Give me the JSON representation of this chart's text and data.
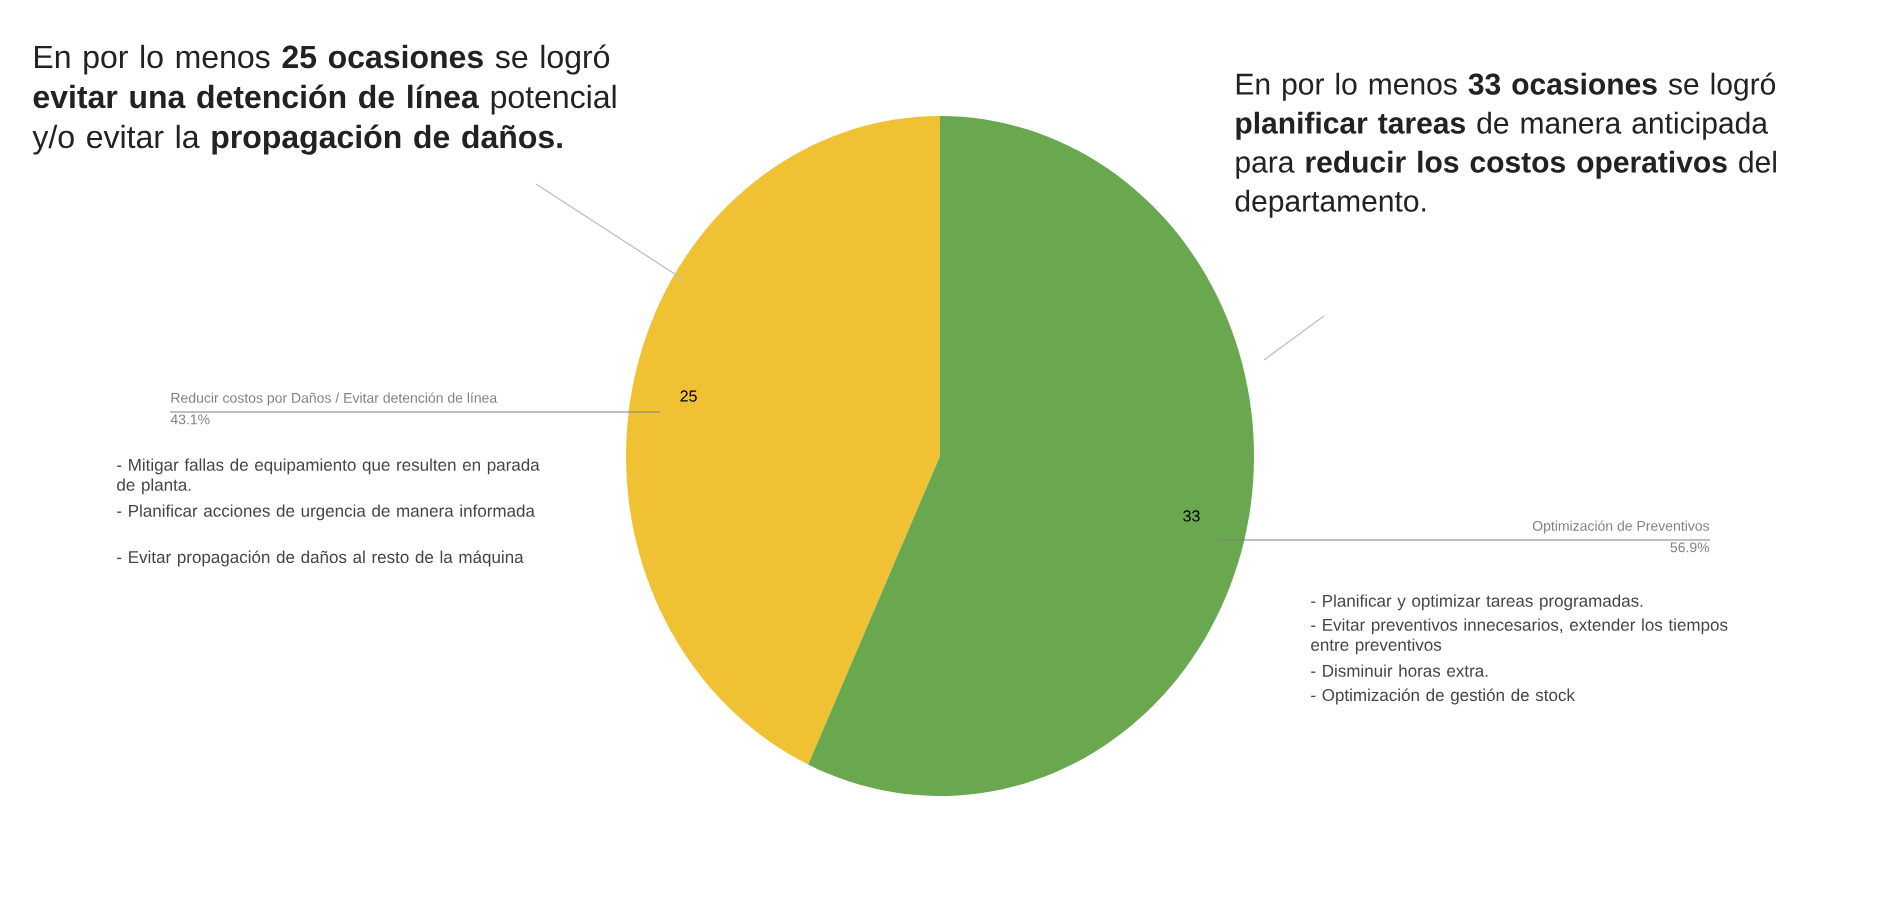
{
  "chart_data": {
    "type": "pie",
    "categories": [
      "Reducir costos por Daños / Evitar detención de línea",
      "Optimización de Preventivos"
    ],
    "values": [
      25,
      33
    ],
    "colors": [
      "#f0c233",
      "#6aa84f"
    ],
    "data_labels": true,
    "annotations": [
      "En por lo menos **25 ocasiones** se logró **evitar una detención de línea** potencial y/o evitar la **propagación de daños.**",
      "En por lo menos **33 ocasiones** se logró **planificar tareas** de manera anticipada para **reducir los costos operativos** del departamento.",
      "43.1%",
      "56.9%",
      "- Mitigar fallas de equipamiento que resulten en parada de planta.",
      "- Planificar acciones de urgencia de manera informada",
      "- Evitar propagación de daños al resto de la máquina",
      "- Planificar y optimizar tareas programadas.",
      "- Evitar preventivos innecesarios, extender los tiempos entre preventivos",
      "- Disminuir horas extra.",
      "- Optimización de gestión de stock"
    ]
  }
}
